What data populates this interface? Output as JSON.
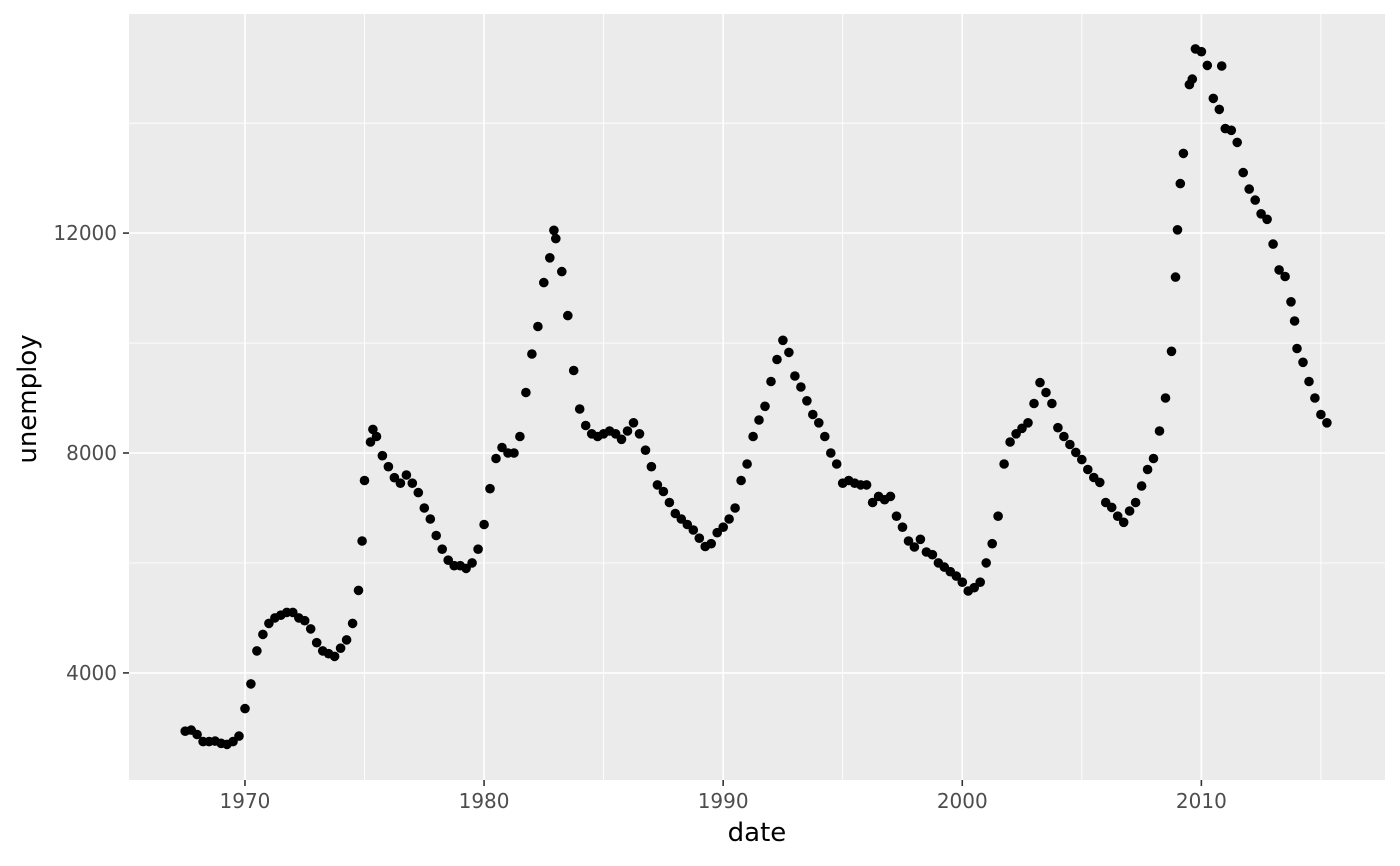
{
  "chart_data": {
    "type": "scatter",
    "title": "",
    "xlabel": "date",
    "ylabel": "unemploy",
    "legend": "none",
    "grid": true,
    "xlim": [
      1965.15,
      2017.68
    ],
    "ylim": [
      2052,
      15985
    ],
    "x_ticks": [
      1970,
      1980,
      1990,
      2000,
      2010
    ],
    "x_tick_labels": [
      "1970",
      "1980",
      "1990",
      "2000",
      "2010"
    ],
    "x_minor_breaks": [
      1975,
      1985,
      1995,
      2005,
      2015
    ],
    "y_ticks": [
      4000,
      8000,
      12000
    ],
    "y_tick_labels": [
      "4000",
      "8000",
      "12000"
    ],
    "y_minor_breaks": [
      2000,
      6000,
      10000,
      14000
    ],
    "colors": {
      "panel_background": "#EBEBEB",
      "grid": "#FFFFFF",
      "point": "#000000",
      "tick_mark": "#333333",
      "tick_label": "#4D4D4D",
      "axis_title": "#000000"
    },
    "point_radius": 4.8,
    "series": [
      {
        "name": "unemploy",
        "points": [
          [
            1967.5,
            2940
          ],
          [
            1967.75,
            2960
          ],
          [
            1968.0,
            2880
          ],
          [
            1968.25,
            2750
          ],
          [
            1968.5,
            2750
          ],
          [
            1968.75,
            2760
          ],
          [
            1969.0,
            2720
          ],
          [
            1969.25,
            2700
          ],
          [
            1969.5,
            2750
          ],
          [
            1969.75,
            2850
          ],
          [
            1970.0,
            3350
          ],
          [
            1970.25,
            3800
          ],
          [
            1970.5,
            4400
          ],
          [
            1970.75,
            4700
          ],
          [
            1971.0,
            4900
          ],
          [
            1971.25,
            5000
          ],
          [
            1971.5,
            5050
          ],
          [
            1971.75,
            5100
          ],
          [
            1972.0,
            5100
          ],
          [
            1972.25,
            5000
          ],
          [
            1972.5,
            4950
          ],
          [
            1972.75,
            4800
          ],
          [
            1973.0,
            4550
          ],
          [
            1973.25,
            4400
          ],
          [
            1973.5,
            4350
          ],
          [
            1973.75,
            4300
          ],
          [
            1974.0,
            4450
          ],
          [
            1974.25,
            4600
          ],
          [
            1974.5,
            4900
          ],
          [
            1974.75,
            5500
          ],
          [
            1974.9,
            6400
          ],
          [
            1975.0,
            7500
          ],
          [
            1975.25,
            8200
          ],
          [
            1975.35,
            8430
          ],
          [
            1975.5,
            8300
          ],
          [
            1975.75,
            7950
          ],
          [
            1976.0,
            7750
          ],
          [
            1976.25,
            7550
          ],
          [
            1976.5,
            7450
          ],
          [
            1976.75,
            7600
          ],
          [
            1977.0,
            7450
          ],
          [
            1977.25,
            7280
          ],
          [
            1977.5,
            7000
          ],
          [
            1977.75,
            6800
          ],
          [
            1978.0,
            6500
          ],
          [
            1978.25,
            6250
          ],
          [
            1978.5,
            6050
          ],
          [
            1978.75,
            5950
          ],
          [
            1979.0,
            5950
          ],
          [
            1979.25,
            5900
          ],
          [
            1979.5,
            6000
          ],
          [
            1979.75,
            6250
          ],
          [
            1980.0,
            6700
          ],
          [
            1980.25,
            7350
          ],
          [
            1980.5,
            7900
          ],
          [
            1980.75,
            8100
          ],
          [
            1981.0,
            8000
          ],
          [
            1981.25,
            8000
          ],
          [
            1981.5,
            8300
          ],
          [
            1981.75,
            9100
          ],
          [
            1982.0,
            9800
          ],
          [
            1982.25,
            10300
          ],
          [
            1982.5,
            11100
          ],
          [
            1982.75,
            11550
          ],
          [
            1982.92,
            12050
          ],
          [
            1983.0,
            11900
          ],
          [
            1983.25,
            11300
          ],
          [
            1983.5,
            10500
          ],
          [
            1983.75,
            9500
          ],
          [
            1984.0,
            8800
          ],
          [
            1984.25,
            8500
          ],
          [
            1984.5,
            8350
          ],
          [
            1984.75,
            8300
          ],
          [
            1985.0,
            8350
          ],
          [
            1985.25,
            8400
          ],
          [
            1985.5,
            8350
          ],
          [
            1985.75,
            8250
          ],
          [
            1986.0,
            8400
          ],
          [
            1986.25,
            8550
          ],
          [
            1986.5,
            8350
          ],
          [
            1986.75,
            8050
          ],
          [
            1987.0,
            7750
          ],
          [
            1987.25,
            7420
          ],
          [
            1987.5,
            7300
          ],
          [
            1987.75,
            7100
          ],
          [
            1988.0,
            6900
          ],
          [
            1988.25,
            6800
          ],
          [
            1988.5,
            6700
          ],
          [
            1988.75,
            6600
          ],
          [
            1989.0,
            6450
          ],
          [
            1989.25,
            6300
          ],
          [
            1989.5,
            6350
          ],
          [
            1989.75,
            6550
          ],
          [
            1990.0,
            6650
          ],
          [
            1990.25,
            6800
          ],
          [
            1990.5,
            7000
          ],
          [
            1990.75,
            7500
          ],
          [
            1991.0,
            7800
          ],
          [
            1991.25,
            8300
          ],
          [
            1991.5,
            8600
          ],
          [
            1991.75,
            8850
          ],
          [
            1992.0,
            9300
          ],
          [
            1992.25,
            9700
          ],
          [
            1992.5,
            10050
          ],
          [
            1992.75,
            9830
          ],
          [
            1993.0,
            9400
          ],
          [
            1993.25,
            9200
          ],
          [
            1993.5,
            8950
          ],
          [
            1993.75,
            8700
          ],
          [
            1994.0,
            8550
          ],
          [
            1994.25,
            8300
          ],
          [
            1994.5,
            8000
          ],
          [
            1994.75,
            7800
          ],
          [
            1995.0,
            7450
          ],
          [
            1995.25,
            7500
          ],
          [
            1995.5,
            7450
          ],
          [
            1995.75,
            7420
          ],
          [
            1996.0,
            7420
          ],
          [
            1996.25,
            7100
          ],
          [
            1996.5,
            7210
          ],
          [
            1996.75,
            7150
          ],
          [
            1997.0,
            7210
          ],
          [
            1997.25,
            6850
          ],
          [
            1997.5,
            6650
          ],
          [
            1997.75,
            6400
          ],
          [
            1998.0,
            6290
          ],
          [
            1998.25,
            6430
          ],
          [
            1998.5,
            6200
          ],
          [
            1998.75,
            6150
          ],
          [
            1999.0,
            6000
          ],
          [
            1999.25,
            5925
          ],
          [
            1999.5,
            5840
          ],
          [
            1999.75,
            5760
          ],
          [
            2000.0,
            5650
          ],
          [
            2000.25,
            5490
          ],
          [
            2000.5,
            5550
          ],
          [
            2000.75,
            5650
          ],
          [
            2001.0,
            6000
          ],
          [
            2001.25,
            6350
          ],
          [
            2001.5,
            6850
          ],
          [
            2001.75,
            7800
          ],
          [
            2002.0,
            8200
          ],
          [
            2002.25,
            8350
          ],
          [
            2002.5,
            8450
          ],
          [
            2002.75,
            8550
          ],
          [
            2003.0,
            8900
          ],
          [
            2003.25,
            9280
          ],
          [
            2003.5,
            9100
          ],
          [
            2003.75,
            8900
          ],
          [
            2004.0,
            8460
          ],
          [
            2004.25,
            8300
          ],
          [
            2004.5,
            8155
          ],
          [
            2004.75,
            8010
          ],
          [
            2005.0,
            7880
          ],
          [
            2005.25,
            7700
          ],
          [
            2005.5,
            7555
          ],
          [
            2005.75,
            7465
          ],
          [
            2006.0,
            7100
          ],
          [
            2006.25,
            7010
          ],
          [
            2006.5,
            6850
          ],
          [
            2006.75,
            6740
          ],
          [
            2007.0,
            6945
          ],
          [
            2007.25,
            7100
          ],
          [
            2007.5,
            7400
          ],
          [
            2007.75,
            7700
          ],
          [
            2008.0,
            7900
          ],
          [
            2008.25,
            8400
          ],
          [
            2008.5,
            9000
          ],
          [
            2008.75,
            9850
          ],
          [
            2008.92,
            11200
          ],
          [
            2009.0,
            12060
          ],
          [
            2009.12,
            12900
          ],
          [
            2009.25,
            13450
          ],
          [
            2009.5,
            14700
          ],
          [
            2009.62,
            14800
          ],
          [
            2009.75,
            15350
          ],
          [
            2010.0,
            15300
          ],
          [
            2010.25,
            15050
          ],
          [
            2010.5,
            14450
          ],
          [
            2010.75,
            14250
          ],
          [
            2010.85,
            15040
          ],
          [
            2011.0,
            13900
          ],
          [
            2011.25,
            13870
          ],
          [
            2011.5,
            13650
          ],
          [
            2011.75,
            13100
          ],
          [
            2012.0,
            12800
          ],
          [
            2012.25,
            12600
          ],
          [
            2012.5,
            12350
          ],
          [
            2012.75,
            12250
          ],
          [
            2013.0,
            11800
          ],
          [
            2013.25,
            11330
          ],
          [
            2013.5,
            11210
          ],
          [
            2013.75,
            10750
          ],
          [
            2013.9,
            10400
          ],
          [
            2014.0,
            9900
          ],
          [
            2014.25,
            9650
          ],
          [
            2014.5,
            9300
          ],
          [
            2014.75,
            9000
          ],
          [
            2015.0,
            8700
          ],
          [
            2015.25,
            8550
          ]
        ]
      }
    ]
  }
}
